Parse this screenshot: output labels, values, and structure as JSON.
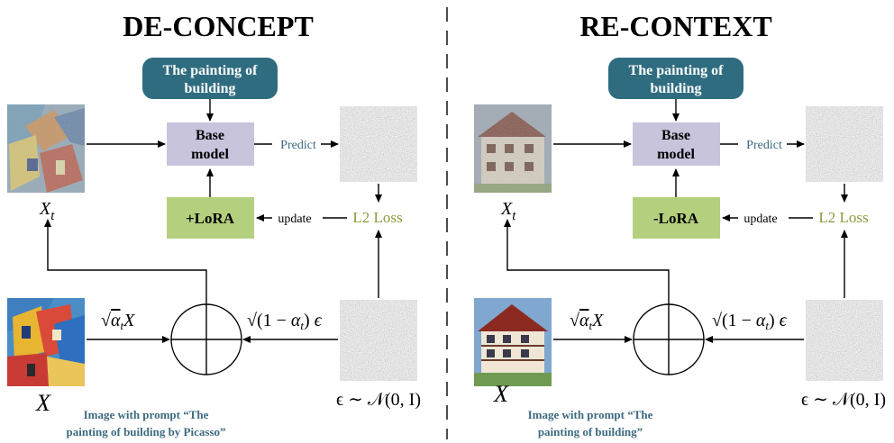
{
  "divider": {
    "style": "dashed"
  },
  "colors": {
    "prompt_fill": "#2f6c80",
    "base_fill": "#c8c4dc",
    "lora_fill": "#b4d07f",
    "noise_fill": "#8a8a8a",
    "caption": "#3d6a80",
    "loss": "#8c9a3c"
  },
  "panels": [
    {
      "title": "DE-CONCEPT",
      "prompt_line1": "The painting of",
      "prompt_line2": "building",
      "base_line1": "Base",
      "base_line2": "model",
      "predict": "Predict",
      "update": "update",
      "lora": "+LoRA",
      "loss": "L2 Loss",
      "xt_label": "X_t",
      "x_label": "X",
      "sqrt_alpha": "√α_t X",
      "sqrt_one_minus": "√(1 − α_t) ϵ",
      "epsilon": "ϵ ∼ 𝒩(0, I)",
      "caption_line1": "Image with prompt “The",
      "caption_line2": "painting of building by Picasso”",
      "noisy_image": "noisy-cubist-building",
      "clean_image": "cubist-building-painting"
    },
    {
      "title": "RE-CONTEXT",
      "prompt_line1": "The painting of",
      "prompt_line2": "building",
      "base_line1": "Base",
      "base_line2": "model",
      "predict": "Predict",
      "update": "update",
      "lora": "-LoRA",
      "loss": "L2 Loss",
      "xt_label": "X_t",
      "x_label": "X",
      "sqrt_alpha": "√α_t X",
      "sqrt_one_minus": "√(1 − α_t) ϵ",
      "epsilon": "ϵ ∼ 𝒩(0, I)",
      "caption_line1": "Image with prompt “The",
      "caption_line2": "painting of building”",
      "noisy_image": "noisy-timber-house",
      "clean_image": "timber-house-painting"
    }
  ]
}
